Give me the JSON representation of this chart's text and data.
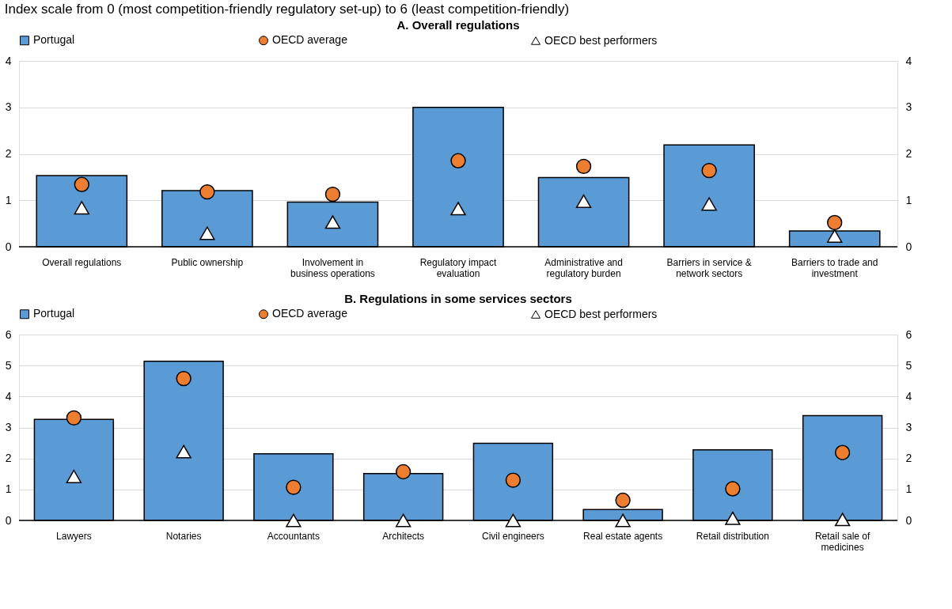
{
  "chart_data": [
    {
      "type": "bar",
      "title": "A. Overall regulations",
      "subtitle": "Index scale from 0 (most competition-friendly regulatory set-up) to 6 (least competition-friendly)",
      "categories": [
        "Overall regulations",
        "Public ownership",
        "Involvement in business operations",
        "Regulatory impact evaluation",
        "Administrative and regulatory burden",
        "Barriers in service & network sectors",
        "Barriers to trade and investment"
      ],
      "series": [
        {
          "name": "Portugal",
          "type": "bar",
          "color": "#5b9bd5",
          "values": [
            1.53,
            1.21,
            0.96,
            3.0,
            1.49,
            2.19,
            0.34
          ]
        },
        {
          "name": "OECD average",
          "type": "scatter",
          "marker": "circle",
          "color": "#ed7d31",
          "values": [
            1.34,
            1.18,
            1.13,
            1.85,
            1.73,
            1.64,
            0.52
          ]
        },
        {
          "name": "OECD best performers",
          "type": "scatter",
          "marker": "triangle",
          "color": "#ffffff",
          "values": [
            0.84,
            0.29,
            0.53,
            0.82,
            0.98,
            0.92,
            0.23
          ]
        }
      ],
      "ylim": [
        0,
        4
      ],
      "yticks": [
        0,
        1,
        2,
        3,
        4
      ],
      "y2lim": [
        0,
        4
      ],
      "y2ticks": [
        0,
        1,
        2,
        3,
        4
      ],
      "grid": "y",
      "legend": "top"
    },
    {
      "type": "bar",
      "title": "B. Regulations in some services sectors",
      "categories": [
        "Lawyers",
        "Notaries",
        "Accountants",
        "Architects",
        "Civil engineers",
        "Real estate agents",
        "Retail distribution",
        "Retail sale of medicines"
      ],
      "series": [
        {
          "name": "Portugal",
          "type": "bar",
          "color": "#5b9bd5",
          "values": [
            3.26,
            5.14,
            2.15,
            1.51,
            2.49,
            0.35,
            2.28,
            3.38
          ]
        },
        {
          "name": "OECD average",
          "type": "scatter",
          "marker": "circle",
          "color": "#ed7d31",
          "values": [
            3.31,
            4.58,
            1.07,
            1.57,
            1.3,
            0.65,
            1.02,
            2.19
          ]
        },
        {
          "name": "OECD best performers",
          "type": "scatter",
          "marker": "triangle",
          "color": "#ffffff",
          "values": [
            1.42,
            2.22,
            0.0,
            0.0,
            0.0,
            0.0,
            0.07,
            0.03
          ]
        }
      ],
      "ylim": [
        0,
        6
      ],
      "yticks": [
        0,
        1,
        2,
        3,
        4,
        5,
        6
      ],
      "y2lim": [
        0,
        6
      ],
      "y2ticks": [
        0,
        1,
        2,
        3,
        4,
        5,
        6
      ],
      "grid": "y",
      "legend": "top"
    }
  ]
}
